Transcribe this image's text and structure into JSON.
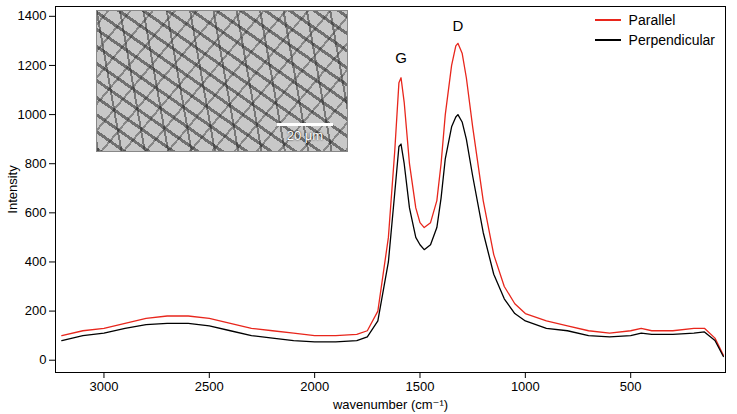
{
  "chart_data": {
    "type": "line",
    "xlabel": "wavenumber (cm⁻¹)",
    "ylabel": "Intensity",
    "x": [
      3200,
      3100,
      3000,
      2900,
      2800,
      2700,
      2600,
      2500,
      2400,
      2300,
      2200,
      2100,
      2000,
      1900,
      1800,
      1750,
      1700,
      1650,
      1620,
      1600,
      1590,
      1575,
      1550,
      1520,
      1500,
      1480,
      1450,
      1420,
      1400,
      1380,
      1350,
      1330,
      1320,
      1300,
      1280,
      1250,
      1200,
      1150,
      1100,
      1050,
      1000,
      900,
      800,
      700,
      600,
      500,
      450,
      400,
      300,
      200,
      150,
      100,
      60
    ],
    "series": [
      {
        "name": "Parallel",
        "color": "#e8261c",
        "values": [
          100,
          120,
          130,
          150,
          170,
          180,
          180,
          170,
          150,
          130,
          120,
          110,
          100,
          100,
          105,
          120,
          200,
          500,
          850,
          1130,
          1150,
          1050,
          800,
          620,
          560,
          540,
          560,
          650,
          800,
          1000,
          1200,
          1280,
          1290,
          1250,
          1150,
          950,
          650,
          430,
          300,
          230,
          190,
          160,
          140,
          120,
          110,
          120,
          130,
          120,
          120,
          130,
          130,
          90,
          20
        ]
      },
      {
        "name": "Perpendicular",
        "color": "#000000",
        "values": [
          80,
          100,
          110,
          130,
          145,
          150,
          150,
          140,
          120,
          100,
          90,
          80,
          75,
          75,
          80,
          95,
          160,
          400,
          680,
          870,
          880,
          800,
          620,
          500,
          470,
          450,
          470,
          540,
          660,
          820,
          950,
          990,
          1000,
          970,
          900,
          750,
          520,
          350,
          250,
          190,
          160,
          130,
          120,
          100,
          95,
          100,
          110,
          105,
          105,
          110,
          115,
          80,
          15
        ]
      }
    ],
    "xlim": [
      3230,
      50
    ],
    "ylim": [
      -50,
      1440
    ],
    "xticks": [
      3000,
      2500,
      2000,
      1500,
      1000,
      500
    ],
    "yticks": [
      0,
      200,
      400,
      600,
      800,
      1000,
      1200,
      1400
    ],
    "legend": "top-right",
    "annotations": [
      {
        "text": "G",
        "x": 1590,
        "y": 1230
      },
      {
        "text": "D",
        "x": 1320,
        "y": 1360
      }
    ],
    "inset_label": "20 μm"
  }
}
